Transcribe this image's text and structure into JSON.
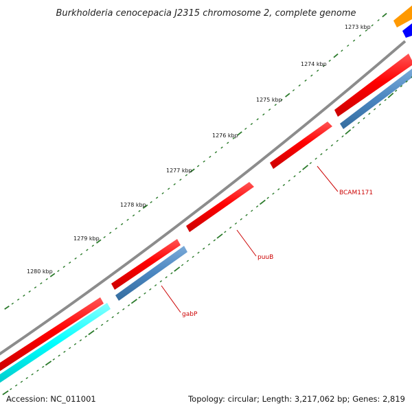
{
  "title": "Burkholderia cenocepacia J2315 chromosome 2, complete genome",
  "footer": {
    "accession": "Accession: NC_011001",
    "topology": "Topology: circular; Length: 3,217,062 bp; Genes: 2,819"
  },
  "tick_labels": [
    "1273 kbp",
    "1274 kbp",
    "1275 kbp",
    "1276 kbp",
    "1277 kbp",
    "1278 kbp",
    "1279 kbp",
    "1280 kbp"
  ],
  "gene_labels": [
    "BCAM1171",
    "puuB",
    "gabP"
  ],
  "colors": {
    "backbone": "#8c8c8c",
    "forward_cds": "#ff0000",
    "reverse_cds": "#4a86c0",
    "rrna": "#00ffff",
    "orange": "#ff9900",
    "blue": "#0000ff",
    "tick": "#2a7a2a",
    "label_red": "#cc0000"
  }
}
